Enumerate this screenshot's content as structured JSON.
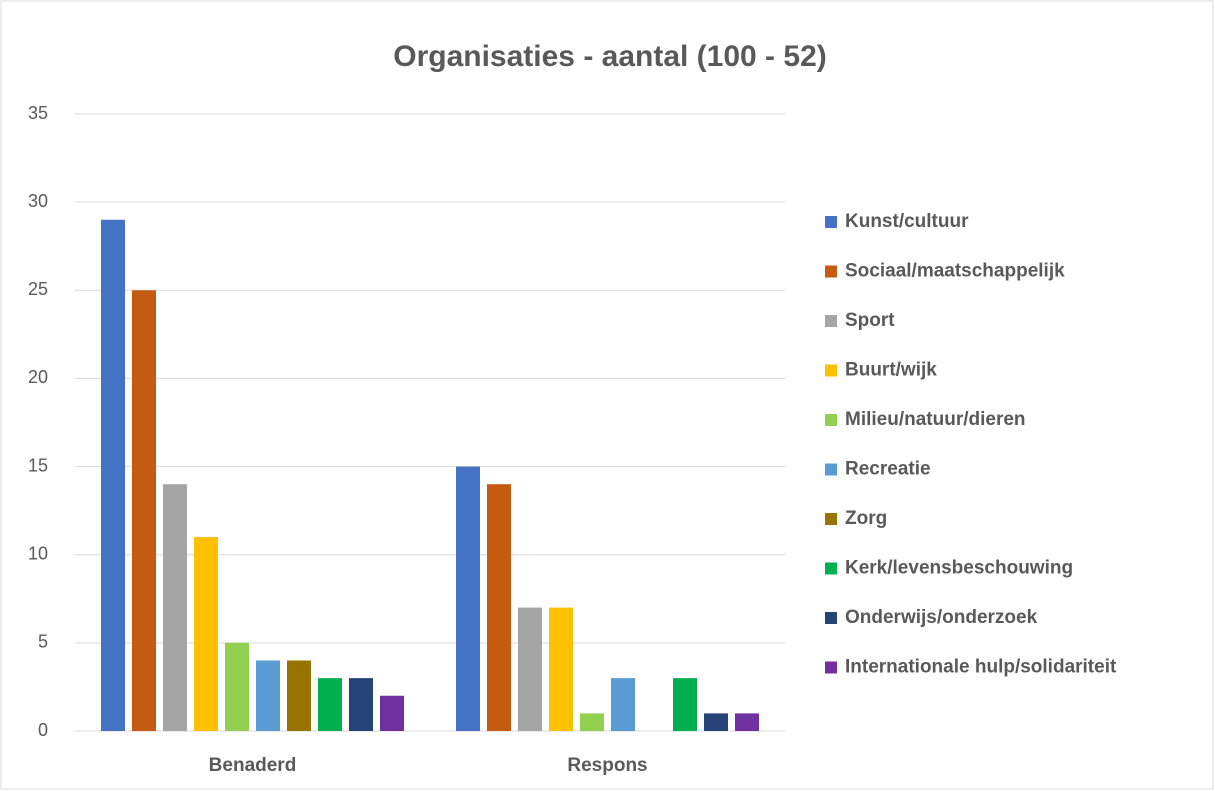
{
  "chart_data": {
    "type": "bar",
    "title": "Organisaties - aantal (100 - 52)",
    "categories": [
      "Benaderd",
      "Respons"
    ],
    "series": [
      {
        "name": "Kunst/cultuur",
        "color": "#4472C4",
        "values": [
          29,
          15
        ]
      },
      {
        "name": "Sociaal/maatschappelijk",
        "color": "#C55A11",
        "values": [
          25,
          14
        ]
      },
      {
        "name": "Sport",
        "color": "#A5A5A5",
        "values": [
          14,
          7
        ]
      },
      {
        "name": "Buurt/wijk",
        "color": "#FFC000",
        "values": [
          11,
          7
        ]
      },
      {
        "name": "Milieu/natuur/dieren",
        "color": "#92D050",
        "values": [
          5,
          1
        ]
      },
      {
        "name": "Recreatie",
        "color": "#5B9BD5",
        "values": [
          4,
          3
        ]
      },
      {
        "name": "Zorg",
        "color": "#997300",
        "values": [
          4,
          0
        ]
      },
      {
        "name": "Kerk/levensbeschouwing",
        "color": "#00B050",
        "values": [
          3,
          3
        ]
      },
      {
        "name": "Onderwijs/onderzoek",
        "color": "#264478",
        "values": [
          3,
          1
        ]
      },
      {
        "name": "Internationale hulp/solidariteit",
        "color": "#7030A0",
        "values": [
          2,
          1
        ]
      }
    ],
    "ylim": [
      0,
      35
    ],
    "yticks": [
      0,
      5,
      10,
      15,
      20,
      25,
      30,
      35
    ],
    "grid": true,
    "legend": "right"
  }
}
